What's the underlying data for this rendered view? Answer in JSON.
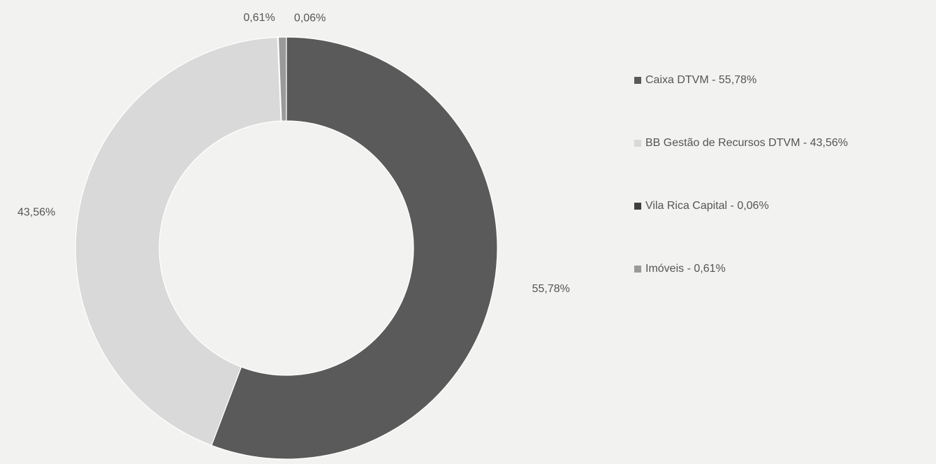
{
  "chart_data": {
    "type": "pie",
    "variant": "donut",
    "series": [
      {
        "name": "Caixa DTVM - 55,78%",
        "value": 55.78,
        "label": "55,78%",
        "color": "#5a5a5a"
      },
      {
        "name": "BB Gestão de Recursos DTVM - 43,56%",
        "value": 43.56,
        "label": "43,56%",
        "color": "#d9d9d9"
      },
      {
        "name": "Vila Rica Capital - 0,06%",
        "value": 0.06,
        "label": "0,06%",
        "color": "#3f3f3f"
      },
      {
        "name": "Imóveis - 0,61%",
        "value": 0.61,
        "label": "0,61%",
        "color": "#9a9a9a"
      }
    ],
    "legend": {
      "position": "right"
    },
    "start_angle_deg": 0,
    "direction": "clockwise"
  }
}
